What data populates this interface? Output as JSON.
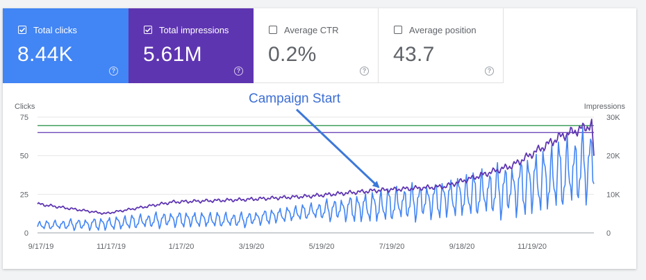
{
  "metrics": {
    "total_clicks": {
      "label": "Total clicks",
      "value": "8.44K",
      "checked": true,
      "color": "#4285f4"
    },
    "total_impressions": {
      "label": "Total impressions",
      "value": "5.61M",
      "checked": true,
      "color": "#5e35b1"
    },
    "average_ctr": {
      "label": "Average CTR",
      "value": "0.2%",
      "checked": false
    },
    "average_position": {
      "label": "Average position",
      "value": "43.7",
      "checked": false
    },
    "help_glyph": "?"
  },
  "chart_data": {
    "type": "line",
    "x_tick_labels": [
      "9/17/19",
      "11/17/19",
      "1/17/20",
      "3/19/20",
      "5/19/20",
      "7/19/20",
      "9/18/20",
      "11/19/20"
    ],
    "left_axis": {
      "label": "Clicks",
      "ticks": [
        "0",
        "25",
        "50",
        "75"
      ],
      "range": [
        0,
        75
      ]
    },
    "right_axis": {
      "label": "Impressions",
      "ticks": [
        "0",
        "10K",
        "20K",
        "30K"
      ],
      "range": [
        0,
        30000
      ]
    },
    "x_range": [
      "2019-09-17",
      "2021-01-31"
    ],
    "grid": true,
    "annotation": {
      "text": "Campaign Start",
      "points_to": "2020-07-10"
    },
    "series": [
      {
        "axis": "left",
        "color": "#4285f4",
        "keypoints": [
          {
            "date": "2019-09-17",
            "low": 2,
            "high": 8
          },
          {
            "date": "2019-11-17",
            "low": 1,
            "high": 11
          },
          {
            "date": "2020-01-17",
            "low": 3,
            "high": 15
          },
          {
            "date": "2020-03-19",
            "low": 3,
            "high": 14
          },
          {
            "date": "2020-05-19",
            "low": 8,
            "high": 20
          },
          {
            "date": "2020-07-19",
            "low": 5,
            "high": 30
          },
          {
            "date": "2020-09-18",
            "low": 8,
            "high": 37
          },
          {
            "date": "2020-11-19",
            "low": 8,
            "high": 50
          },
          {
            "date": "2021-01-15",
            "low": 12,
            "high": 70
          },
          {
            "date": "2021-01-31",
            "low": 22,
            "high": 71
          }
        ]
      },
      {
        "axis": "right",
        "color": "#5e35b1",
        "keypoints": [
          {
            "date": "2019-09-17",
            "value": 7500
          },
          {
            "date": "2019-11-17",
            "value": 5000
          },
          {
            "date": "2020-01-17",
            "value": 8000
          },
          {
            "date": "2020-03-19",
            "value": 8600
          },
          {
            "date": "2020-05-19",
            "value": 9500
          },
          {
            "date": "2020-07-19",
            "value": 11000
          },
          {
            "date": "2020-09-18",
            "value": 12000
          },
          {
            "date": "2020-11-19",
            "value": 17500
          },
          {
            "date": "2021-01-01",
            "value": 25000
          },
          {
            "date": "2021-01-29",
            "value": 28000
          },
          {
            "date": "2021-01-31",
            "value": 20000
          }
        ]
      }
    ],
    "reference_lines": [
      {
        "axis": "left",
        "value": 69.5,
        "color": "#1e8e3e"
      },
      {
        "axis": "left",
        "value": 65,
        "color": "#5e35b1"
      }
    ]
  }
}
